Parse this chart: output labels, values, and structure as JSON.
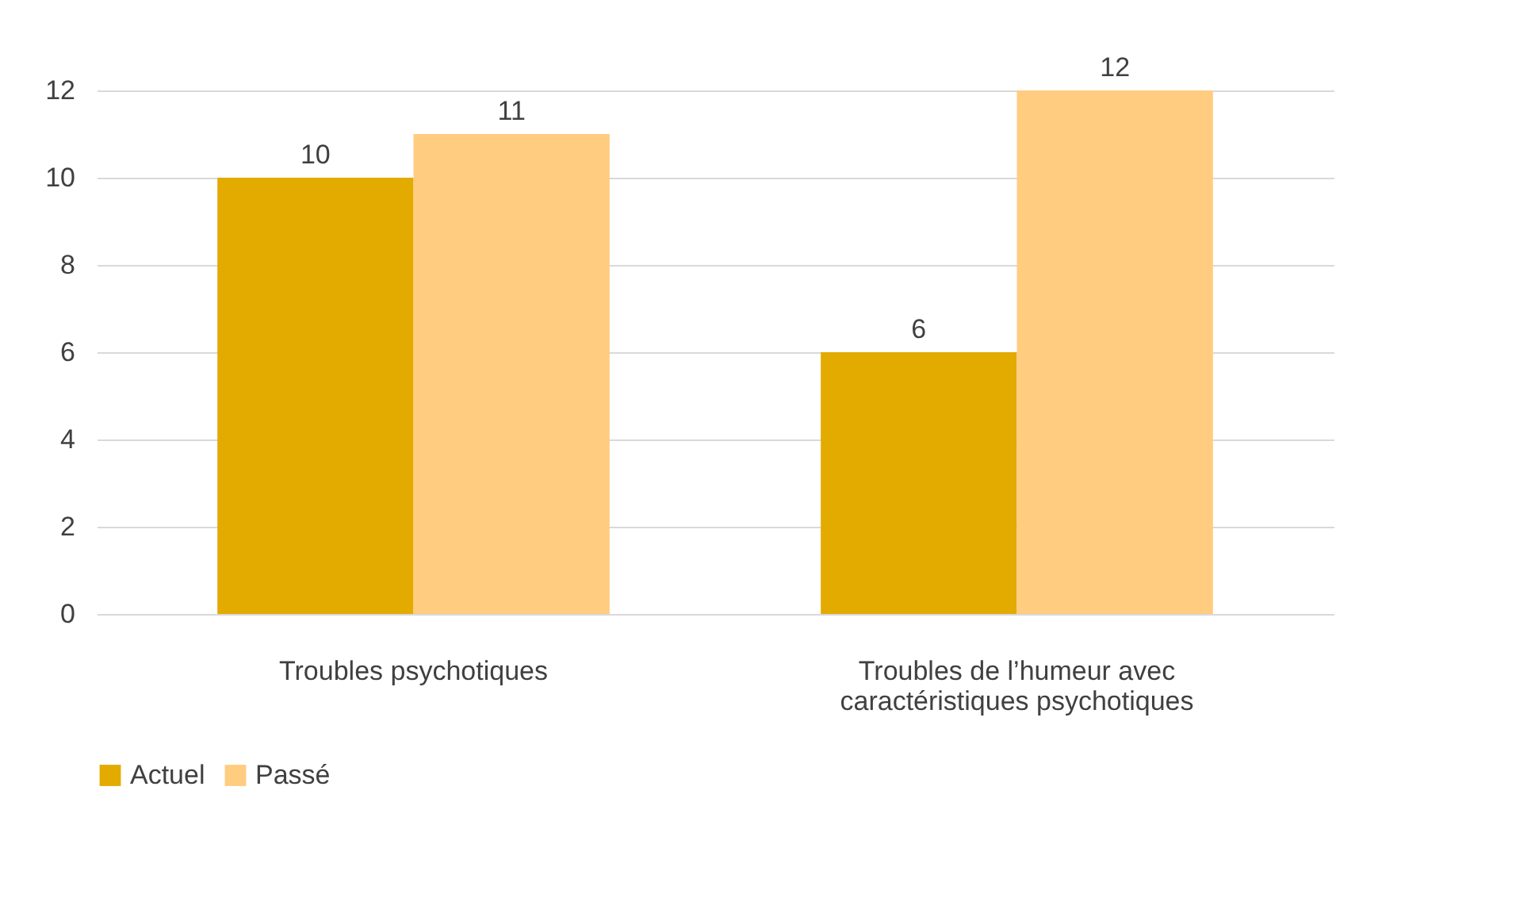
{
  "chart_data": {
    "type": "bar",
    "categories": [
      "Troubles psychotiques",
      "Troubles de l’humeur avec caractéristiques psychotiques"
    ],
    "series": [
      {
        "name": "Actuel",
        "color": "#e3aa00",
        "values": [
          10,
          6
        ]
      },
      {
        "name": "Passé",
        "color": "#ffcc80",
        "values": [
          11,
          12
        ]
      }
    ],
    "ylim": [
      0,
      12
    ],
    "yticks": [
      0,
      2,
      4,
      6,
      8,
      10,
      12
    ],
    "grid": "y",
    "legend": "bottom",
    "data_labels": true
  }
}
